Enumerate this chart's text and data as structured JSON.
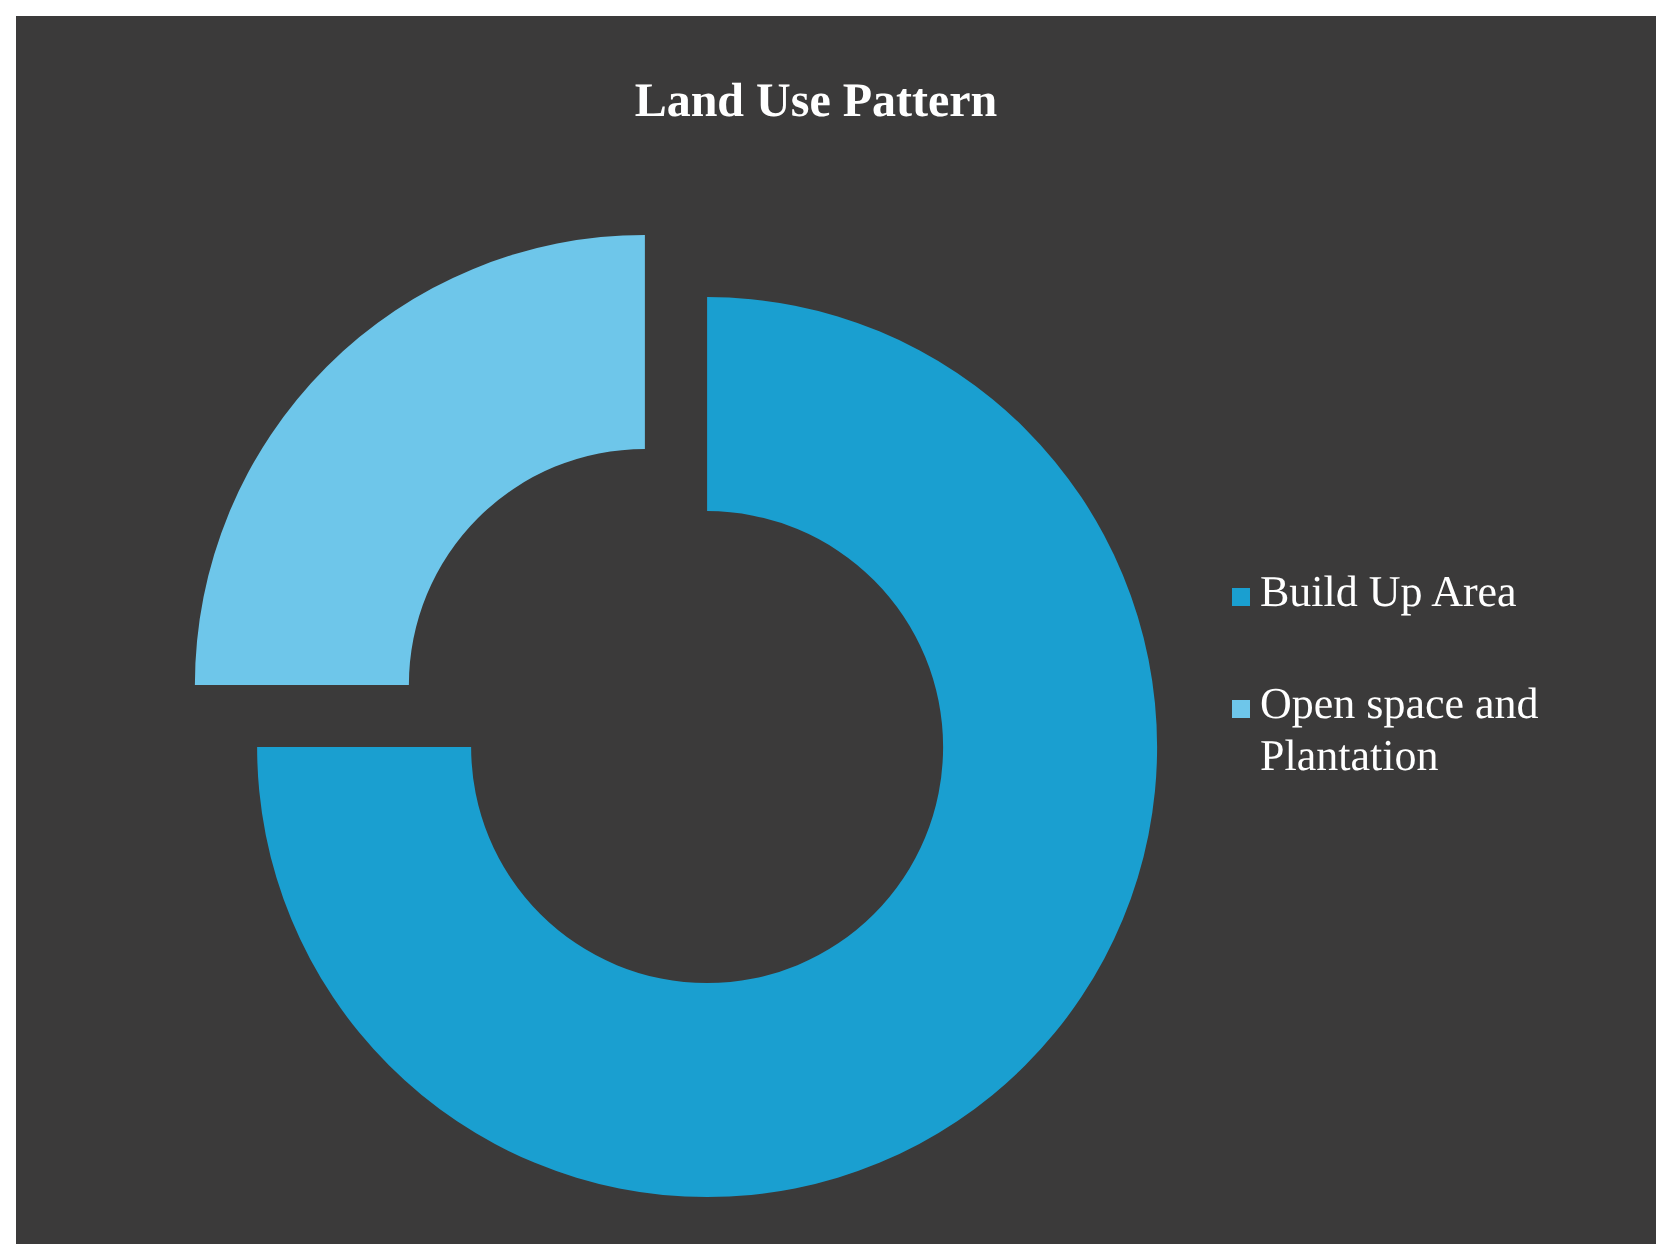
{
  "chart_data": {
    "type": "donut",
    "title": "Land Use Pattern",
    "categories": [
      "Build Up Area",
      "Open space and Plantation"
    ],
    "values": [
      75,
      25
    ],
    "colors": [
      "#1a9fd0",
      "#6ec6ea"
    ],
    "legend": "right"
  }
}
